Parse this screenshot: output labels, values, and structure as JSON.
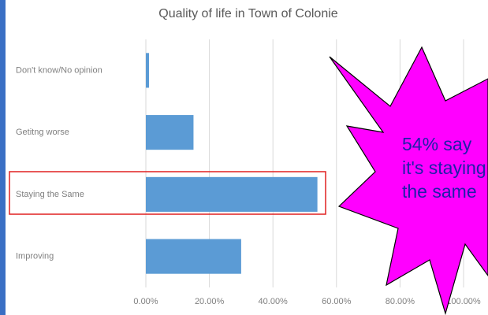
{
  "chart_data": {
    "type": "barh",
    "title": "Quality of life in Town of Colonie",
    "categories": [
      "Don't know/No opinion",
      "Getitng worse",
      "Staying the Same",
      "Improving"
    ],
    "values": [
      1,
      15,
      54,
      30
    ],
    "color": "#5b9bd5",
    "xlim": [
      0,
      100
    ],
    "xticks": [
      {
        "value": 0,
        "label": "0.00%"
      },
      {
        "value": 20,
        "label": "20.00%"
      },
      {
        "value": 40,
        "label": "40.00%"
      },
      {
        "value": 60,
        "label": "60.00%"
      },
      {
        "value": 80,
        "label": "80.00%"
      },
      {
        "value": 100,
        "label": "100.00%"
      }
    ],
    "grid": true,
    "annotation": [
      "54% say",
      "it's staying",
      "the same"
    ]
  }
}
